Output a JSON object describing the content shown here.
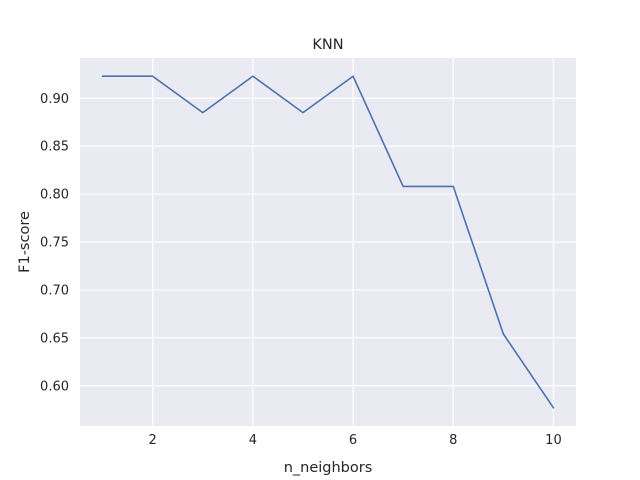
{
  "chart_data": {
    "type": "line",
    "title": "KNN",
    "xlabel": "n_neighbors",
    "ylabel": "F1-score",
    "x": [
      1,
      2,
      3,
      4,
      5,
      6,
      7,
      8,
      9,
      10
    ],
    "series": [
      {
        "values": [
          0.923,
          0.923,
          0.885,
          0.923,
          0.885,
          0.923,
          0.808,
          0.808,
          0.654,
          0.577
        ]
      }
    ],
    "xlim": [
      0.55,
      10.45
    ],
    "ylim": [
      0.558,
      0.942
    ],
    "xticks": [
      2,
      4,
      6,
      8,
      10
    ],
    "xtick_labels": [
      "2",
      "4",
      "6",
      "8",
      "10"
    ],
    "yticks": [
      0.6,
      0.65,
      0.7,
      0.75,
      0.8,
      0.85,
      0.9
    ],
    "ytick_labels": [
      "0.60",
      "0.65",
      "0.70",
      "0.75",
      "0.80",
      "0.85",
      "0.90"
    ],
    "grid": true,
    "colors": {
      "background": "#eaeaf2",
      "grid": "#ffffff",
      "line": "#4c72b0"
    }
  }
}
